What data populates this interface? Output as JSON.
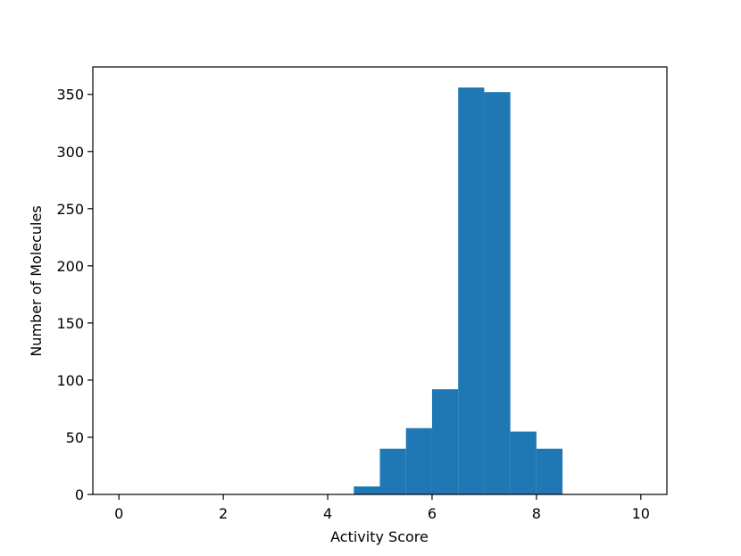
{
  "chart_data": {
    "type": "bar",
    "title": "",
    "xlabel": "Activity Score",
    "ylabel": "Number of Molecules",
    "xlim": [
      -0.5,
      10.5
    ],
    "ylim": [
      0,
      374
    ],
    "grid": false,
    "bar_color": "#1f77b4",
    "bins": [
      {
        "x0": 4.5,
        "x1": 5.0,
        "value": 7
      },
      {
        "x0": 5.0,
        "x1": 5.5,
        "value": 40
      },
      {
        "x0": 5.5,
        "x1": 6.0,
        "value": 58
      },
      {
        "x0": 6.0,
        "x1": 6.5,
        "value": 92
      },
      {
        "x0": 6.5,
        "x1": 7.0,
        "value": 356
      },
      {
        "x0": 7.0,
        "x1": 7.5,
        "value": 352
      },
      {
        "x0": 7.5,
        "x1": 8.0,
        "value": 55
      },
      {
        "x0": 8.0,
        "x1": 8.5,
        "value": 40
      }
    ],
    "x_ticks": [
      0,
      2,
      4,
      6,
      8,
      10
    ],
    "y_ticks": [
      0,
      50,
      100,
      150,
      200,
      250,
      300,
      350
    ]
  }
}
